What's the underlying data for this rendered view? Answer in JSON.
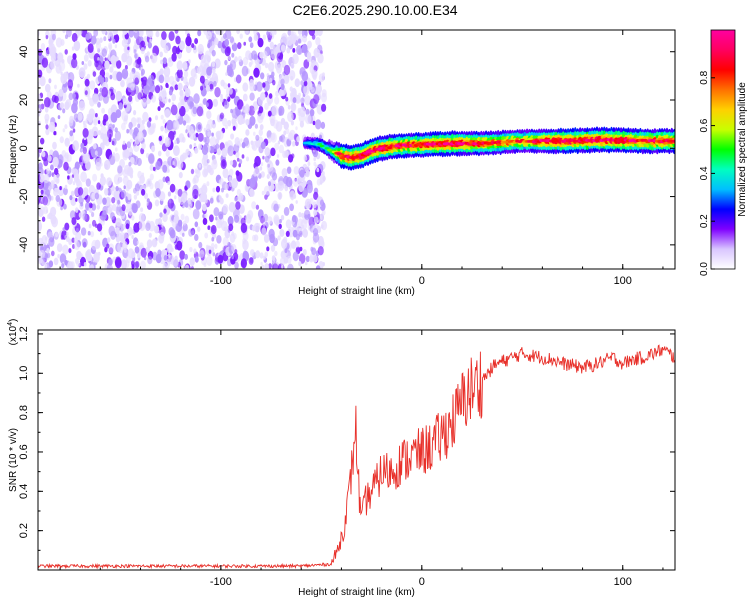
{
  "figure_title": "C2E6.2025.290.10.00.E34",
  "chart_data": [
    {
      "type": "heatmap",
      "title": "",
      "xlabel": "Height of straight line (km)",
      "ylabel": "Frequency (Hz)",
      "xlim": [
        -191,
        126
      ],
      "ylim": [
        -50,
        49
      ],
      "x_ticks": [
        -100,
        0,
        100
      ],
      "y_ticks": [
        -40,
        -20,
        0,
        20,
        40
      ],
      "grid": false,
      "noise_region_x": [
        -191,
        -50
      ],
      "signal_band": [
        {
          "x": -58,
          "f": 2,
          "amp": 0.3
        },
        {
          "x": -52,
          "f": 2,
          "amp": 0.4
        },
        {
          "x": -45,
          "f": -1,
          "amp": 0.5
        },
        {
          "x": -40,
          "f": -3,
          "amp": 0.9
        },
        {
          "x": -35,
          "f": -4,
          "amp": 0.95
        },
        {
          "x": -30,
          "f": -3,
          "amp": 0.95
        },
        {
          "x": -25,
          "f": -1,
          "amp": 0.95
        },
        {
          "x": -20,
          "f": 0,
          "amp": 0.95
        },
        {
          "x": -12,
          "f": 1,
          "amp": 0.9
        },
        {
          "x": 0,
          "f": 1.5,
          "amp": 0.9
        },
        {
          "x": 15,
          "f": 2,
          "amp": 0.95
        },
        {
          "x": 30,
          "f": 2,
          "amp": 0.85
        },
        {
          "x": 50,
          "f": 3,
          "amp": 0.8
        },
        {
          "x": 70,
          "f": 3,
          "amp": 0.95
        },
        {
          "x": 90,
          "f": 3.5,
          "amp": 0.95
        },
        {
          "x": 110,
          "f": 3,
          "amp": 0.9
        },
        {
          "x": 126,
          "f": 3,
          "amp": 0.9
        }
      ],
      "colorbar": {
        "label": "Normalized spectral amplitude",
        "range": [
          0.0,
          1.0
        ],
        "ticks": [
          "0.0",
          "0.2",
          "0.4",
          "0.6",
          "0.8"
        ],
        "colors": [
          "#ffffff",
          "#d9c6ff",
          "#7f00ff",
          "#0000ff",
          "#00bfff",
          "#00ffbf",
          "#00ff00",
          "#c8ff00",
          "#ffd000",
          "#ff7000",
          "#ff0000",
          "#ff0060",
          "#ff00a0"
        ]
      }
    },
    {
      "type": "line",
      "title": "",
      "xlabel": "Height of straight line (km)",
      "ylabel": "SNR (10 * v/v)",
      "scale_label": "(x10",
      "scale_exponent": "4",
      "scale_suffix": ")",
      "xlim": [
        -191,
        126
      ],
      "ylim": [
        0,
        1.22
      ],
      "x_ticks": [
        -100,
        0,
        100
      ],
      "y_ticks": [
        0.2,
        0.4,
        0.6,
        0.8,
        1.0,
        1.2
      ],
      "y_tick_labels": [
        "0.2",
        "0.4",
        "0.6",
        "0.8",
        "1.0",
        "1.2"
      ],
      "line_color": "#e8302a",
      "series": [
        {
          "name": "SNR",
          "x": [
            -191,
            -150,
            -100,
            -60,
            -45,
            -42,
            -39,
            -36,
            -34,
            -33,
            -32,
            -31,
            -30,
            -28,
            -25,
            -22,
            -20,
            -15,
            -10,
            -5,
            0,
            5,
            10,
            15,
            18,
            20,
            23,
            25,
            27,
            30,
            33,
            36,
            40,
            45,
            50,
            55,
            60,
            65,
            70,
            75,
            80,
            85,
            90,
            95,
            100,
            105,
            110,
            115,
            120,
            126
          ],
          "values": [
            0.02,
            0.02,
            0.02,
            0.02,
            0.03,
            0.1,
            0.2,
            0.4,
            0.6,
            0.75,
            0.55,
            0.35,
            0.25,
            0.35,
            0.4,
            0.45,
            0.5,
            0.5,
            0.55,
            0.58,
            0.6,
            0.63,
            0.68,
            0.75,
            0.8,
            0.85,
            0.9,
            0.92,
            0.93,
            0.97,
            1.0,
            1.04,
            1.06,
            1.08,
            1.1,
            1.09,
            1.08,
            1.07,
            1.05,
            1.04,
            1.03,
            1.04,
            1.06,
            1.08,
            1.05,
            1.07,
            1.08,
            1.1,
            1.12,
            1.08
          ]
        }
      ]
    }
  ]
}
